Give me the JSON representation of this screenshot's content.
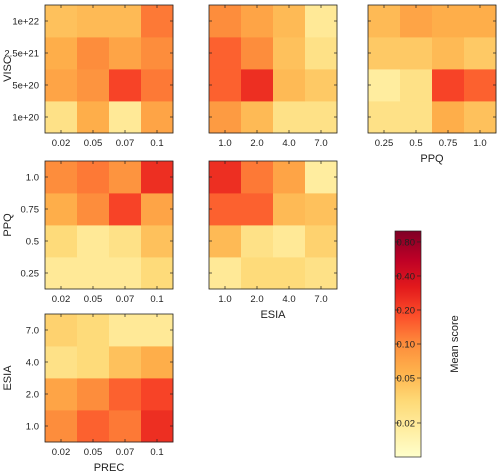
{
  "chart_data": {
    "type": "heatmap",
    "colorbar": {
      "label": "Mean score",
      "ticks": [
        "0.80",
        "0.40",
        "0.20",
        "0.10",
        "0.05",
        "0.02"
      ],
      "tick_values": [
        0.8,
        0.4,
        0.2,
        0.1,
        0.05,
        0.02
      ],
      "scale": "log",
      "range": [
        0.01,
        1.0
      ],
      "colors": [
        "#ffffcc",
        "#ffeda0",
        "#fed976",
        "#feb24c",
        "#fd8d3c",
        "#fc4e2a",
        "#e31a1c",
        "#bd0026",
        "#800026"
      ]
    },
    "axes": {
      "VISC": [
        "1e+20",
        "5e+20",
        "2.5e+21",
        "1e+22"
      ],
      "PREC": [
        "0.02",
        "0.05",
        "0.07",
        "0.1"
      ],
      "ESIA": [
        "1.0",
        "2.0",
        "4.0",
        "7.0"
      ],
      "PPQ": [
        "0.25",
        "0.5",
        "0.75",
        "1.0"
      ]
    },
    "panels": [
      {
        "row": 0,
        "col": 0,
        "x_var": "PREC",
        "y_var": "VISC",
        "show_xticks": true,
        "show_yticks": true,
        "xlabel": "",
        "ylabel": "VISC",
        "values": [
          [
            0.025,
            0.06,
            0.02,
            0.07
          ],
          [
            0.07,
            0.09,
            0.2,
            0.12
          ],
          [
            0.06,
            0.1,
            0.07,
            0.1
          ],
          [
            0.045,
            0.05,
            0.05,
            0.12
          ]
        ]
      },
      {
        "row": 0,
        "col": 1,
        "x_var": "ESIA",
        "y_var": "VISC",
        "show_xticks": true,
        "show_yticks": false,
        "xlabel": "",
        "ylabel": "",
        "values": [
          [
            0.08,
            0.05,
            0.025,
            0.025
          ],
          [
            0.15,
            0.25,
            0.05,
            0.04
          ],
          [
            0.15,
            0.1,
            0.045,
            0.025
          ],
          [
            0.1,
            0.07,
            0.05,
            0.02
          ]
        ]
      },
      {
        "row": 0,
        "col": 2,
        "x_var": "PPQ",
        "y_var": "VISC",
        "show_xticks": true,
        "show_yticks": false,
        "xlabel": "PPQ",
        "ylabel": "",
        "values": [
          [
            0.025,
            0.025,
            0.06,
            0.045
          ],
          [
            0.018,
            0.025,
            0.2,
            0.15
          ],
          [
            0.04,
            0.04,
            0.05,
            0.04
          ],
          [
            0.05,
            0.07,
            0.06,
            0.06
          ]
        ]
      },
      {
        "row": 1,
        "col": 0,
        "x_var": "PREC",
        "y_var": "PPQ",
        "show_xticks": true,
        "show_yticks": true,
        "xlabel": "",
        "ylabel": "PPQ",
        "values": [
          [
            0.02,
            0.02,
            0.02,
            0.03
          ],
          [
            0.03,
            0.02,
            0.025,
            0.045
          ],
          [
            0.06,
            0.1,
            0.2,
            0.07
          ],
          [
            0.1,
            0.12,
            0.09,
            0.25
          ]
        ]
      },
      {
        "row": 1,
        "col": 1,
        "x_var": "ESIA",
        "y_var": "PPQ",
        "show_xticks": true,
        "show_yticks": false,
        "xlabel": "ESIA",
        "ylabel": "",
        "values": [
          [
            0.02,
            0.03,
            0.03,
            0.025
          ],
          [
            0.05,
            0.025,
            0.02,
            0.035
          ],
          [
            0.15,
            0.15,
            0.05,
            0.045
          ],
          [
            0.25,
            0.12,
            0.07,
            0.018
          ]
        ]
      },
      {
        "row": 2,
        "col": 0,
        "x_var": "PREC",
        "y_var": "ESIA",
        "show_xticks": true,
        "show_yticks": true,
        "xlabel": "PREC",
        "ylabel": "ESIA",
        "values": [
          [
            0.1,
            0.15,
            0.12,
            0.25
          ],
          [
            0.07,
            0.1,
            0.15,
            0.2
          ],
          [
            0.025,
            0.03,
            0.045,
            0.06
          ],
          [
            0.035,
            0.03,
            0.02,
            0.02
          ]
        ]
      }
    ]
  }
}
